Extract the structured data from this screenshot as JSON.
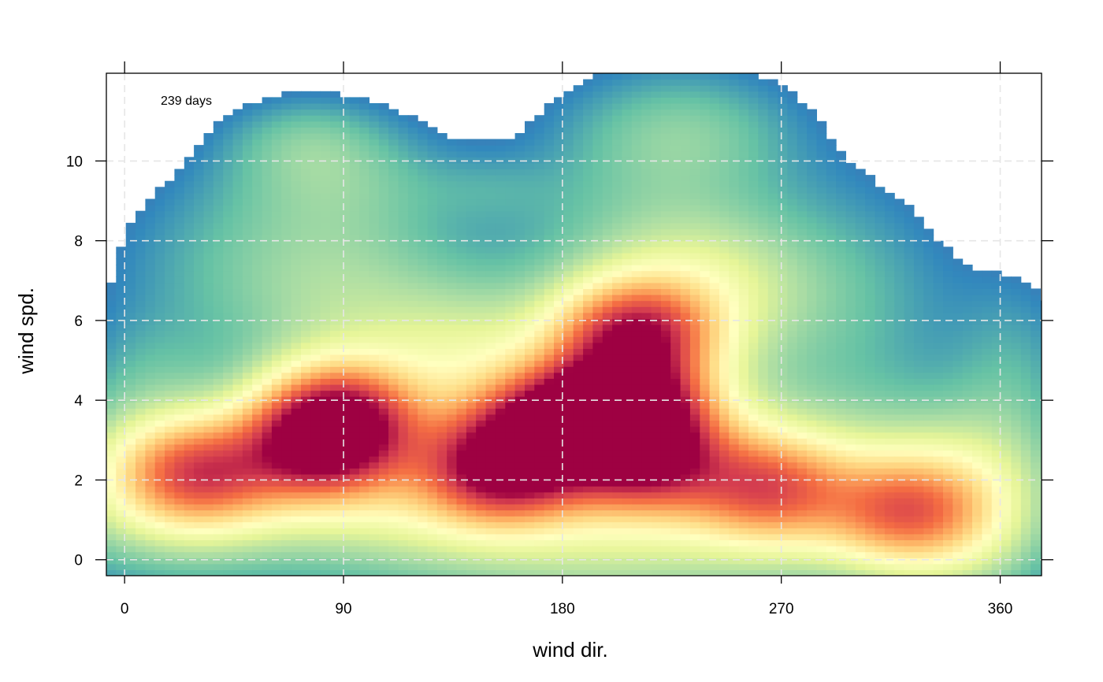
{
  "chart_data": {
    "type": "heatmap",
    "title": "",
    "xlabel": "wind dir.",
    "ylabel": "wind spd.",
    "xlim": [
      -7.5,
      377
    ],
    "ylim": [
      -0.4,
      12.2
    ],
    "x_ticks": [
      0,
      90,
      180,
      270,
      360
    ],
    "y_ticks": [
      0,
      2,
      4,
      6,
      8,
      10
    ],
    "grid": true,
    "grid_style": "dashed",
    "annotation": "239 days",
    "colorscale": [
      "#5E4FA2",
      "#3288BD",
      "#66C2A5",
      "#ABDDA4",
      "#E6F598",
      "#FFFFBF",
      "#FEE08B",
      "#FDAE61",
      "#F46D43",
      "#D53E4F",
      "#9E0142"
    ],
    "density_peaks": [
      {
        "dir": 205,
        "spd": 3.9,
        "level": 1.0
      },
      {
        "dir": 210,
        "spd": 5.7,
        "level": 0.8
      },
      {
        "dir": 88,
        "spd": 3.7,
        "level": 0.75
      },
      {
        "dir": 155,
        "spd": 2.3,
        "level": 0.75
      },
      {
        "dir": 175,
        "spd": 3.4,
        "level": 0.7
      },
      {
        "dir": 215,
        "spd": 2.6,
        "level": 0.7
      },
      {
        "dir": 80,
        "spd": 2.8,
        "level": 0.7
      },
      {
        "dir": 30,
        "spd": 2.2,
        "level": 0.6
      },
      {
        "dir": 265,
        "spd": 1.8,
        "level": 0.55
      },
      {
        "dir": 320,
        "spd": 1.2,
        "level": 0.5
      }
    ]
  }
}
